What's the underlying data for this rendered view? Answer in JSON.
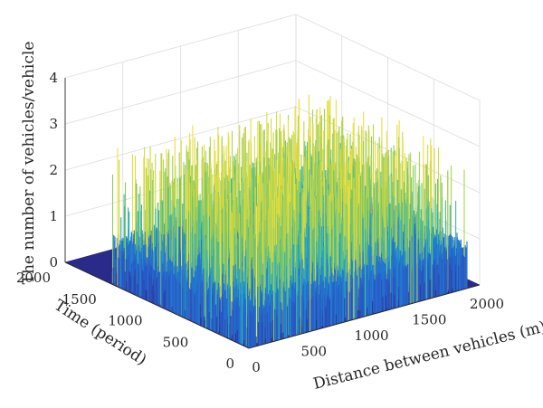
{
  "chart_data": {
    "type": "surface3d",
    "title": "",
    "xlabel": "Distance between vehicles (m)",
    "ylabel": "Time (period)",
    "zlabel": "The number of vehicles/vehicle",
    "xlim": [
      0,
      2000
    ],
    "ylim": [
      0,
      2000
    ],
    "zlim": [
      0,
      4
    ],
    "xticks": [
      "0",
      "500",
      "1000",
      "1500",
      "2000"
    ],
    "yticks": [
      "0",
      "500",
      "1000",
      "1500",
      "2000"
    ],
    "zticks": [
      "0",
      "1",
      "2",
      "3",
      "4"
    ],
    "grid": true,
    "colormap": "parula",
    "baseline_color": "#2a2a8a",
    "peak_color": "#f2e23a",
    "summary": {
      "typical_peak_height": 1,
      "max_peak_height": 3,
      "occupied_x_range": [
        0,
        1900
      ],
      "occupied_y_range": [
        0,
        1500
      ]
    }
  }
}
